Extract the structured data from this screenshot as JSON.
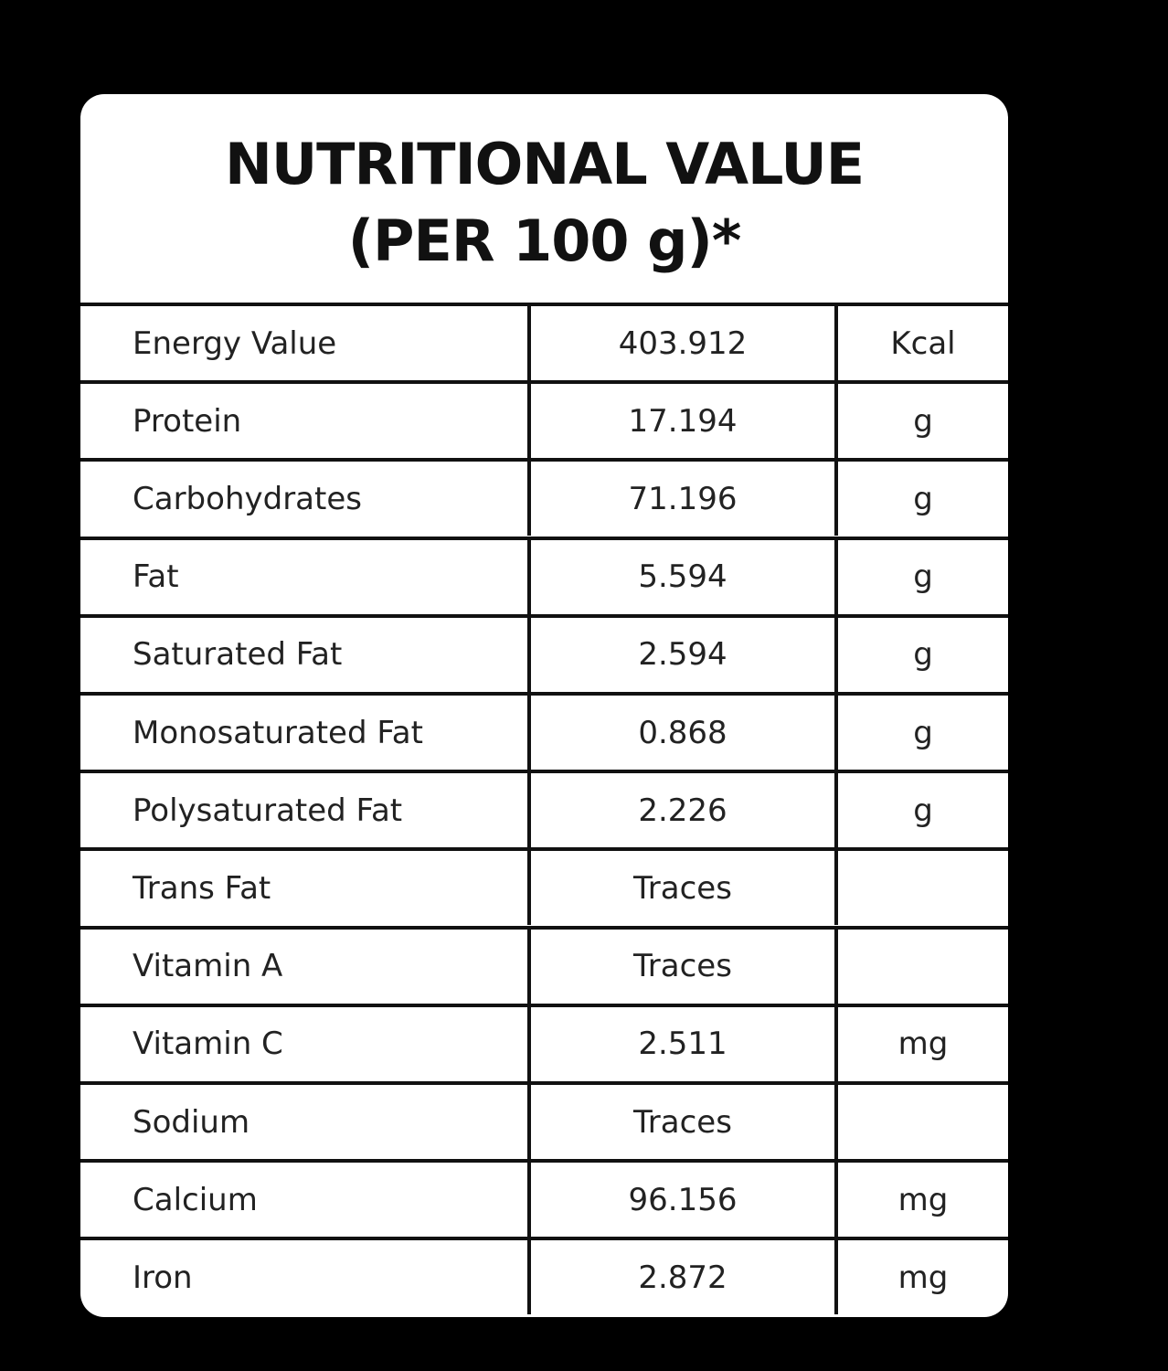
{
  "header": {
    "title": "NUTRITIONAL VALUE",
    "subtitle": "(PER 100 g)*"
  },
  "table": {
    "rows": [
      [
        "Energy Value",
        "403.912",
        "Kcal"
      ],
      [
        "Protein",
        "17.194",
        "g"
      ],
      [
        "Carbohydrates",
        "71.196",
        "g"
      ],
      [
        "Fat",
        "5.594",
        "g"
      ],
      [
        "Saturated Fat",
        "2.594",
        "g"
      ],
      [
        "Monosaturated Fat",
        "0.868",
        "g"
      ],
      [
        "Polysaturated Fat",
        "2.226",
        "g"
      ],
      [
        "Trans Fat",
        "Traces"
      ],
      [
        "Vitamin A",
        "Traces"
      ],
      [
        "Vitamin C",
        "2.511",
        "mg"
      ],
      [
        "Sodium",
        "Traces"
      ],
      [
        "Calcium",
        "96.156",
        "mg"
      ],
      [
        "Iron",
        "2.872",
        "mg"
      ]
    ]
  }
}
